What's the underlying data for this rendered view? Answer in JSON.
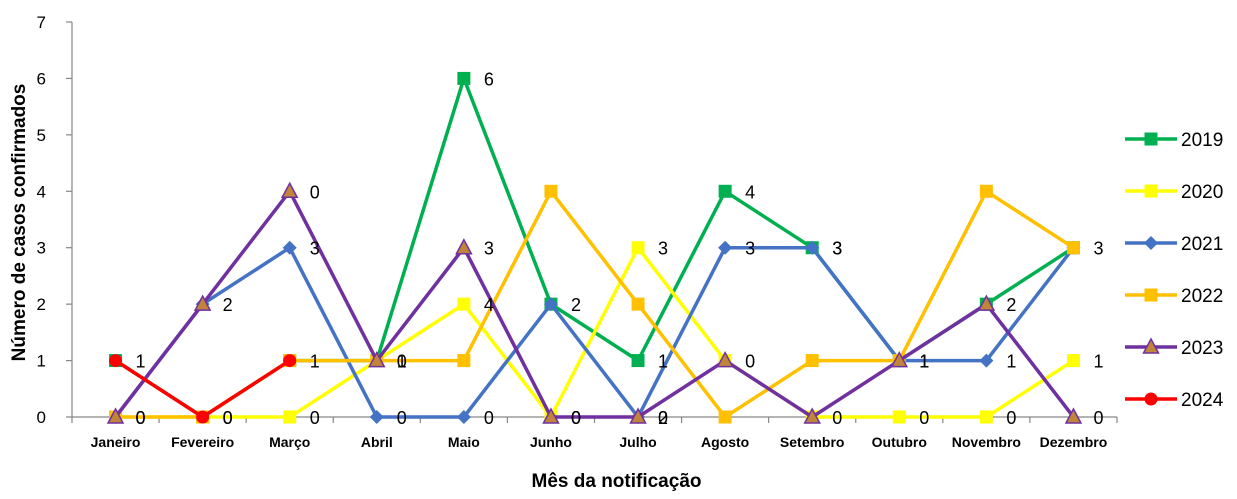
{
  "chart_data": {
    "type": "line",
    "title": "",
    "xlabel": "Mês da notificação",
    "ylabel": "Número de casos confirmados",
    "ylim": [
      0,
      7
    ],
    "yticks": [
      "0",
      "1",
      "2",
      "3",
      "4",
      "5",
      "6",
      "7"
    ],
    "grid": false,
    "legend_position": "right",
    "categories": [
      "Janeiro",
      "Fevereiro",
      "Março",
      "Abril",
      "Maio",
      "Junho",
      "Julho",
      "Agosto",
      "Setembro",
      "Outubro",
      "Novembro",
      "Dezembro"
    ],
    "series": [
      {
        "name": "2019",
        "color": "#00B050",
        "marker": "square",
        "values": [
          1,
          0,
          1,
          1,
          6,
          2,
          1,
          4,
          3,
          1,
          2,
          3
        ]
      },
      {
        "name": "2020",
        "color": "#FFFF00",
        "marker": "square",
        "values": [
          0,
          0,
          0,
          1,
          2,
          0,
          3,
          1,
          0,
          0,
          0,
          1
        ]
      },
      {
        "name": "2021",
        "color": "#4472C4",
        "marker": "diamond",
        "values": [
          0,
          2,
          3,
          0,
          0,
          2,
          0,
          3,
          3,
          1,
          1,
          3
        ]
      },
      {
        "name": "2022",
        "color": "#FFC000",
        "marker": "square",
        "values": [
          0,
          0,
          1,
          1,
          1,
          4,
          2,
          0,
          1,
          1,
          4,
          3
        ]
      },
      {
        "name": "2023",
        "color": "#7030A0",
        "marker": "triangle",
        "marker_fill": "#C0853A",
        "values": [
          0,
          2,
          4,
          1,
          3,
          0,
          0,
          1,
          0,
          1,
          2,
          0
        ]
      },
      {
        "name": "2024",
        "color": "#FF0000",
        "marker": "circle",
        "values": [
          1,
          0,
          1,
          null,
          null,
          null,
          null,
          null,
          null,
          null,
          null,
          null
        ]
      }
    ],
    "data_labels": [
      "1",
      "0",
      "1",
      "0",
      "6",
      "2",
      "1",
      "4",
      "3",
      "1",
      "2",
      "3",
      "0",
      "2",
      "3",
      "1",
      "3",
      "0",
      "3",
      "3",
      "3",
      "1",
      "1",
      "1",
      "0",
      "0",
      "4",
      "2",
      "0",
      "0",
      "0",
      "0",
      "0",
      "0",
      "0",
      "0",
      "0",
      "0",
      "0"
    ]
  }
}
